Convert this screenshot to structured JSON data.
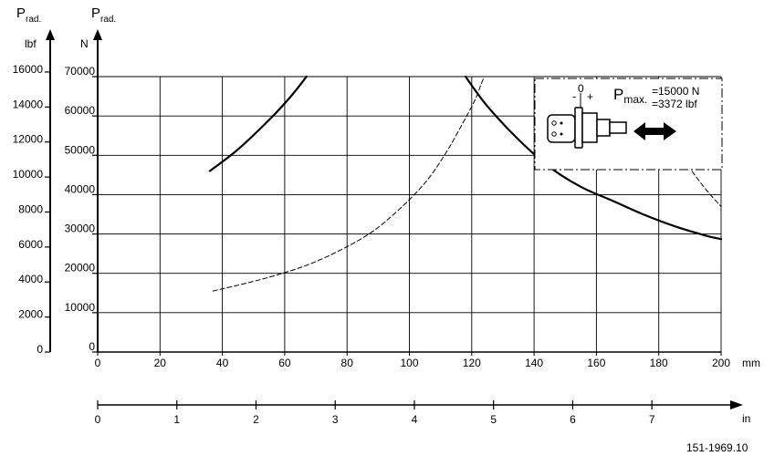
{
  "chart_data": {
    "type": "line",
    "axes": {
      "y_left": {
        "label_main": "P",
        "label_sub": "rad.",
        "unit": "lbf",
        "ticks": [
          0,
          2000,
          4000,
          6000,
          8000,
          10000,
          12000,
          14000,
          16000
        ]
      },
      "y_right": {
        "label_main": "P",
        "label_sub": "rad.",
        "unit": "N",
        "ticks": [
          0,
          10000,
          20000,
          30000,
          40000,
          50000,
          60000,
          70000
        ],
        "ylim": [
          0,
          70000
        ]
      },
      "x_mm": {
        "unit": "mm",
        "ticks": [
          0,
          20,
          40,
          60,
          80,
          100,
          120,
          140,
          160,
          180,
          200
        ],
        "xlim": [
          0,
          200
        ]
      },
      "x_in": {
        "unit": "in",
        "ticks": [
          0,
          1,
          2,
          3,
          4,
          5,
          6,
          7
        ]
      }
    },
    "grid": true,
    "series": [
      {
        "style": "solid",
        "points": [
          [
            36,
            46000
          ],
          [
            45,
            51500
          ],
          [
            55,
            59000
          ],
          [
            62,
            65000
          ],
          [
            67,
            70000
          ]
        ]
      },
      {
        "style": "solid",
        "points": [
          [
            118,
            70000
          ],
          [
            125,
            62500
          ],
          [
            135,
            54000
          ],
          [
            145,
            47000
          ],
          [
            155,
            42000
          ],
          [
            165,
            38500
          ],
          [
            175,
            35000
          ],
          [
            185,
            32000
          ],
          [
            195,
            29600
          ],
          [
            200,
            28700
          ]
        ]
      },
      {
        "style": "dashed",
        "points": [
          [
            37,
            15500
          ],
          [
            55,
            19000
          ],
          [
            70,
            23000
          ],
          [
            85,
            29000
          ],
          [
            95,
            35000
          ],
          [
            105,
            43000
          ],
          [
            112,
            51000
          ],
          [
            117,
            58000
          ],
          [
            121,
            64000
          ],
          [
            123,
            68000
          ],
          [
            124,
            70000
          ]
        ]
      },
      {
        "style": "dashed",
        "points": [
          [
            188,
            49000
          ],
          [
            192,
            44500
          ],
          [
            196,
            40500
          ],
          [
            200,
            37000
          ]
        ]
      }
    ],
    "annotation": {
      "pmax_main": "P",
      "pmax_sub": "max.",
      "pmax_n": "=15000 N",
      "pmax_lbf": "=3372 lbf",
      "shaft_minus": "-",
      "shaft_zero": "0",
      "shaft_plus": "+"
    },
    "figure_ref": "151-1969.10"
  },
  "colors": {
    "ink": "#000000",
    "background": "#ffffff"
  }
}
